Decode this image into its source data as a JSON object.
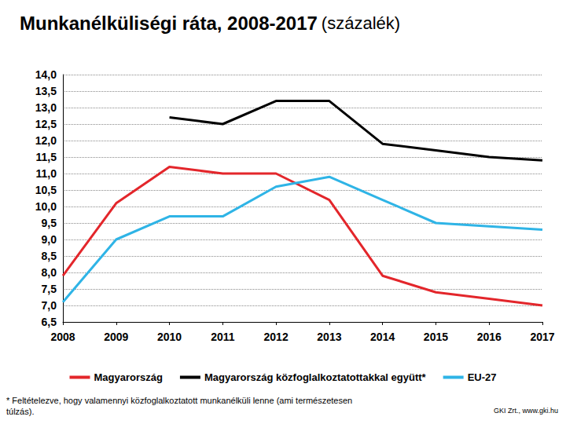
{
  "chart_data": {
    "type": "line",
    "title": "Munkanélküliségi ráta, 2008-2017",
    "subtitle": "(százalék)",
    "categories": [
      "2008",
      "2009",
      "2010",
      "2011",
      "2012",
      "2013",
      "2014",
      "2015",
      "2016",
      "2017"
    ],
    "series": [
      {
        "name": "Magyarország",
        "color": "#e3262b",
        "values": [
          7.9,
          10.1,
          11.2,
          11.0,
          11.0,
          10.2,
          7.9,
          7.4,
          7.2,
          7.0
        ]
      },
      {
        "name": "Magyarország közfoglalkoztatottakkal együtt*",
        "color": "#000000",
        "values": [
          null,
          null,
          12.7,
          12.5,
          13.2,
          13.2,
          11.9,
          11.7,
          11.5,
          11.4
        ]
      },
      {
        "name": "EU-27",
        "color": "#2fb4e6",
        "values": [
          7.1,
          9.0,
          9.7,
          9.7,
          10.6,
          10.9,
          10.2,
          9.5,
          9.4,
          9.3
        ]
      }
    ],
    "ylim": [
      6.5,
      14.0
    ],
    "yticks": [
      {
        "value": 6.5,
        "label": "6,5"
      },
      {
        "value": 7.0,
        "label": "7,0"
      },
      {
        "value": 7.5,
        "label": "7,5"
      },
      {
        "value": 8.0,
        "label": "8,0"
      },
      {
        "value": 8.5,
        "label": "8,5"
      },
      {
        "value": 9.0,
        "label": "9,0"
      },
      {
        "value": 9.5,
        "label": "9,5"
      },
      {
        "value": 10.0,
        "label": "10,0"
      },
      {
        "value": 10.5,
        "label": "10,5"
      },
      {
        "value": 11.0,
        "label": "11,0"
      },
      {
        "value": 11.5,
        "label": "11,5"
      },
      {
        "value": 12.0,
        "label": "12,0"
      },
      {
        "value": 12.5,
        "label": "12,5"
      },
      {
        "value": 13.0,
        "label": "13,0"
      },
      {
        "value": 13.5,
        "label": "13,5"
      },
      {
        "value": 14.0,
        "label": "14,0"
      }
    ],
    "grid": true,
    "legend": "bottom",
    "footnote": "* Feltételezve, hogy valamennyi közfoglalkoztatott munkanélküli lenne (ami természetesen túlzás).",
    "source": "GKI Zrt., www.gki.hu"
  }
}
